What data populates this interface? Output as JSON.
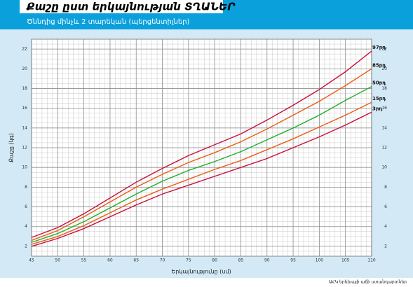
{
  "chart_data": {
    "type": "line",
    "title": "Քաշը ըստ երկայնության  ՏՂԱՆԵՐ",
    "subtitle": "Ծննդից մինչև 2 տարեկան (պերցենտիլներ)",
    "x_label": "Երկայնությունը (սմ)",
    "y_label": "Քաշը (կգ)",
    "source": "ԱՀԿ երեխայի աճի ստանդարտներ",
    "x": [
      45,
      50,
      55,
      60,
      65,
      70,
      75,
      80,
      85,
      90,
      95,
      100,
      105,
      110
    ],
    "xlim": [
      45,
      110
    ],
    "xticks": [
      45,
      50,
      55,
      60,
      65,
      70,
      75,
      80,
      85,
      90,
      95,
      100,
      105,
      110
    ],
    "ylim": [
      1,
      23
    ],
    "yticks": [
      2,
      4,
      6,
      8,
      10,
      12,
      14,
      16,
      18,
      20,
      22
    ],
    "grid": true,
    "series": [
      {
        "name": "97րդ",
        "color": "#c8103c",
        "values": [
          2.9,
          3.9,
          5.3,
          6.9,
          8.5,
          9.9,
          11.2,
          12.3,
          13.4,
          14.8,
          16.3,
          17.9,
          19.7,
          21.8
        ]
      },
      {
        "name": "85րդ",
        "color": "#ea5d14",
        "values": [
          2.6,
          3.6,
          5.0,
          6.5,
          8.0,
          9.3,
          10.5,
          11.5,
          12.6,
          13.9,
          15.3,
          16.7,
          18.3,
          20.0
        ]
      },
      {
        "name": "50րդ",
        "color": "#1fae2a",
        "values": [
          2.4,
          3.3,
          4.5,
          5.9,
          7.3,
          8.6,
          9.7,
          10.6,
          11.6,
          12.8,
          14.0,
          15.3,
          16.8,
          18.2
        ]
      },
      {
        "name": "15րդ",
        "color": "#ea5d14",
        "values": [
          2.2,
          3.0,
          4.1,
          5.4,
          6.7,
          7.8,
          8.8,
          9.8,
          10.7,
          11.8,
          12.9,
          14.1,
          15.3,
          16.6
        ]
      },
      {
        "name": "3րդ",
        "color": "#c8103c",
        "values": [
          2.0,
          2.8,
          3.8,
          5.0,
          6.2,
          7.3,
          8.2,
          9.1,
          10.0,
          10.9,
          12.0,
          13.1,
          14.3,
          15.6
        ]
      }
    ]
  }
}
